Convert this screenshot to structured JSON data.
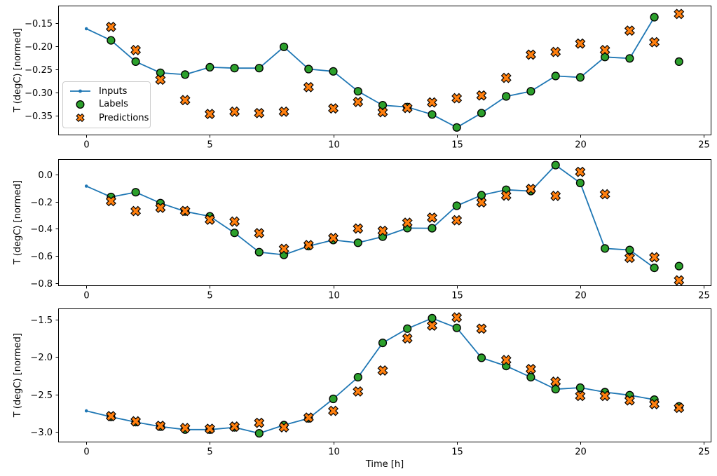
{
  "figure": {
    "xlabel": "Time [h]",
    "background": "#ffffff",
    "colors": {
      "inputs_line": "#1f77b4",
      "labels_marker": "#2ca02c",
      "predictions_marker": "#ff7f0e",
      "marker_edge": "#000000",
      "axis": "#000000",
      "tick_text": "#000000",
      "legend_border": "#cccccc"
    }
  },
  "legend": {
    "items": [
      "Inputs",
      "Labels",
      "Predictions"
    ]
  },
  "chart_data": [
    {
      "type": "line",
      "title": "",
      "xlabel": "",
      "ylabel": "T (degC) [normed]",
      "xlim": [
        -1.14,
        25.31
      ],
      "ylim": [
        -0.392,
        -0.112
      ],
      "xticks": [
        0,
        5,
        10,
        15,
        20,
        25
      ],
      "xtick_labels": [
        "0",
        "5",
        "10",
        "15",
        "20",
        "25"
      ],
      "yticks": [
        -0.15,
        -0.2,
        -0.25,
        -0.3,
        -0.35
      ],
      "ytick_labels": [
        "−0.15",
        "−0.20",
        "−0.25",
        "−0.30",
        "−0.35"
      ],
      "grid": false,
      "legend_position": "center left inside first subplot",
      "series": [
        {
          "name": "Inputs",
          "style": "line_dot",
          "x": [
            0,
            1,
            2,
            3,
            4,
            5,
            6,
            7,
            8,
            9,
            10,
            11,
            12,
            13,
            14,
            15,
            16,
            17,
            18,
            19,
            20,
            21,
            22,
            23
          ],
          "y": [
            -0.162,
            -0.187,
            -0.233,
            -0.257,
            -0.261,
            -0.245,
            -0.247,
            -0.247,
            -0.201,
            -0.249,
            -0.254,
            -0.297,
            -0.327,
            -0.331,
            -0.347,
            -0.375,
            -0.344,
            -0.308,
            -0.297,
            -0.264,
            -0.267,
            -0.223,
            -0.226,
            -0.137
          ]
        },
        {
          "name": "Labels",
          "style": "circle",
          "x": [
            1,
            2,
            3,
            4,
            5,
            6,
            7,
            8,
            9,
            10,
            11,
            12,
            13,
            14,
            15,
            16,
            17,
            18,
            19,
            20,
            21,
            22,
            23,
            24
          ],
          "y": [
            -0.187,
            -0.233,
            -0.257,
            -0.261,
            -0.245,
            -0.247,
            -0.247,
            -0.201,
            -0.249,
            -0.254,
            -0.297,
            -0.327,
            -0.331,
            -0.347,
            -0.375,
            -0.344,
            -0.308,
            -0.297,
            -0.264,
            -0.267,
            -0.223,
            -0.226,
            -0.137,
            -0.233
          ]
        },
        {
          "name": "Predictions",
          "style": "x_marker",
          "x": [
            1,
            2,
            3,
            4,
            5,
            6,
            7,
            8,
            9,
            10,
            11,
            12,
            13,
            14,
            15,
            16,
            17,
            18,
            19,
            20,
            21,
            22,
            23,
            24
          ],
          "y": [
            -0.158,
            -0.208,
            -0.272,
            -0.316,
            -0.346,
            -0.341,
            -0.344,
            -0.341,
            -0.288,
            -0.334,
            -0.32,
            -0.342,
            -0.333,
            -0.321,
            -0.312,
            -0.306,
            -0.268,
            -0.218,
            -0.212,
            -0.194,
            -0.208,
            -0.166,
            -0.191,
            -0.13
          ]
        }
      ]
    },
    {
      "type": "line",
      "title": "",
      "xlabel": "",
      "ylabel": "T (degC) [normed]",
      "xlim": [
        -1.14,
        25.31
      ],
      "ylim": [
        -0.822,
        0.114
      ],
      "xticks": [
        0,
        5,
        10,
        15,
        20,
        25
      ],
      "xtick_labels": [
        "0",
        "5",
        "10",
        "15",
        "20",
        "25"
      ],
      "yticks": [
        0.0,
        -0.2,
        -0.4,
        -0.6,
        -0.8
      ],
      "ytick_labels": [
        "0.0",
        "−0.2",
        "−0.4",
        "−0.6",
        "−0.8"
      ],
      "grid": false,
      "series": [
        {
          "name": "Inputs",
          "style": "line_dot",
          "x": [
            0,
            1,
            2,
            3,
            4,
            5,
            6,
            7,
            8,
            9,
            10,
            11,
            12,
            13,
            14,
            15,
            16,
            17,
            18,
            19,
            20,
            21,
            22,
            23
          ],
          "y": [
            -0.085,
            -0.165,
            -0.13,
            -0.21,
            -0.272,
            -0.308,
            -0.43,
            -0.572,
            -0.592,
            -0.527,
            -0.483,
            -0.503,
            -0.458,
            -0.395,
            -0.396,
            -0.23,
            -0.152,
            -0.112,
            -0.122,
            0.07,
            -0.062,
            -0.545,
            -0.556,
            -0.688
          ]
        },
        {
          "name": "Labels",
          "style": "circle",
          "x": [
            1,
            2,
            3,
            4,
            5,
            6,
            7,
            8,
            9,
            10,
            11,
            12,
            13,
            14,
            15,
            16,
            17,
            18,
            19,
            20,
            21,
            22,
            23,
            24
          ],
          "y": [
            -0.165,
            -0.13,
            -0.21,
            -0.272,
            -0.308,
            -0.43,
            -0.572,
            -0.592,
            -0.527,
            -0.483,
            -0.503,
            -0.458,
            -0.395,
            -0.396,
            -0.23,
            -0.152,
            -0.112,
            -0.122,
            0.07,
            -0.062,
            -0.545,
            -0.556,
            -0.688,
            -0.675
          ]
        },
        {
          "name": "Predictions",
          "style": "x_marker",
          "x": [
            1,
            2,
            3,
            4,
            5,
            6,
            7,
            8,
            9,
            10,
            11,
            12,
            13,
            14,
            15,
            16,
            17,
            18,
            19,
            20,
            21,
            22,
            23,
            24
          ],
          "y": [
            -0.196,
            -0.269,
            -0.245,
            -0.268,
            -0.333,
            -0.347,
            -0.432,
            -0.548,
            -0.52,
            -0.468,
            -0.398,
            -0.415,
            -0.355,
            -0.318,
            -0.337,
            -0.205,
            -0.155,
            -0.106,
            -0.157,
            0.02,
            -0.145,
            -0.614,
            -0.61,
            -0.78
          ]
        }
      ]
    },
    {
      "type": "line",
      "title": "",
      "xlabel": "Time [h]",
      "ylabel": "T (degC) [normed]",
      "xlim": [
        -1.14,
        25.31
      ],
      "ylim": [
        -3.141,
        -1.35
      ],
      "xticks": [
        0,
        5,
        10,
        15,
        20,
        25
      ],
      "xtick_labels": [
        "0",
        "5",
        "10",
        "15",
        "20",
        "25"
      ],
      "yticks": [
        -1.5,
        -2.0,
        -2.5,
        -3.0
      ],
      "ytick_labels": [
        "−1.5",
        "−2.0",
        "−2.5",
        "−3.0"
      ],
      "grid": false,
      "series": [
        {
          "name": "Inputs",
          "style": "line_dot",
          "x": [
            0,
            1,
            2,
            3,
            4,
            5,
            6,
            7,
            8,
            9,
            10,
            11,
            12,
            13,
            14,
            15,
            16,
            17,
            18,
            19,
            20,
            21,
            22,
            23
          ],
          "y": [
            -2.72,
            -2.8,
            -2.87,
            -2.93,
            -2.97,
            -2.97,
            -2.94,
            -3.02,
            -2.91,
            -2.82,
            -2.56,
            -2.27,
            -1.81,
            -1.62,
            -1.48,
            -1.61,
            -2.01,
            -2.12,
            -2.27,
            -2.43,
            -2.41,
            -2.47,
            -2.51,
            -2.57
          ]
        },
        {
          "name": "Labels",
          "style": "circle",
          "x": [
            1,
            2,
            3,
            4,
            5,
            6,
            7,
            8,
            9,
            10,
            11,
            12,
            13,
            14,
            15,
            16,
            17,
            18,
            19,
            20,
            21,
            22,
            23,
            24
          ],
          "y": [
            -2.8,
            -2.87,
            -2.93,
            -2.97,
            -2.97,
            -2.94,
            -3.02,
            -2.91,
            -2.82,
            -2.56,
            -2.27,
            -1.81,
            -1.62,
            -1.48,
            -1.61,
            -2.01,
            -2.12,
            -2.27,
            -2.43,
            -2.41,
            -2.47,
            -2.51,
            -2.57,
            -2.66
          ]
        },
        {
          "name": "Predictions",
          "style": "x_marker",
          "x": [
            1,
            2,
            3,
            4,
            5,
            6,
            7,
            8,
            9,
            10,
            11,
            12,
            13,
            14,
            15,
            16,
            17,
            18,
            19,
            20,
            21,
            22,
            23,
            24
          ],
          "y": [
            -2.79,
            -2.86,
            -2.92,
            -2.95,
            -2.96,
            -2.93,
            -2.88,
            -2.94,
            -2.81,
            -2.72,
            -2.46,
            -2.18,
            -1.75,
            -1.58,
            -1.47,
            -1.62,
            -2.04,
            -2.16,
            -2.33,
            -2.52,
            -2.52,
            -2.58,
            -2.63,
            -2.68
          ]
        }
      ]
    }
  ]
}
